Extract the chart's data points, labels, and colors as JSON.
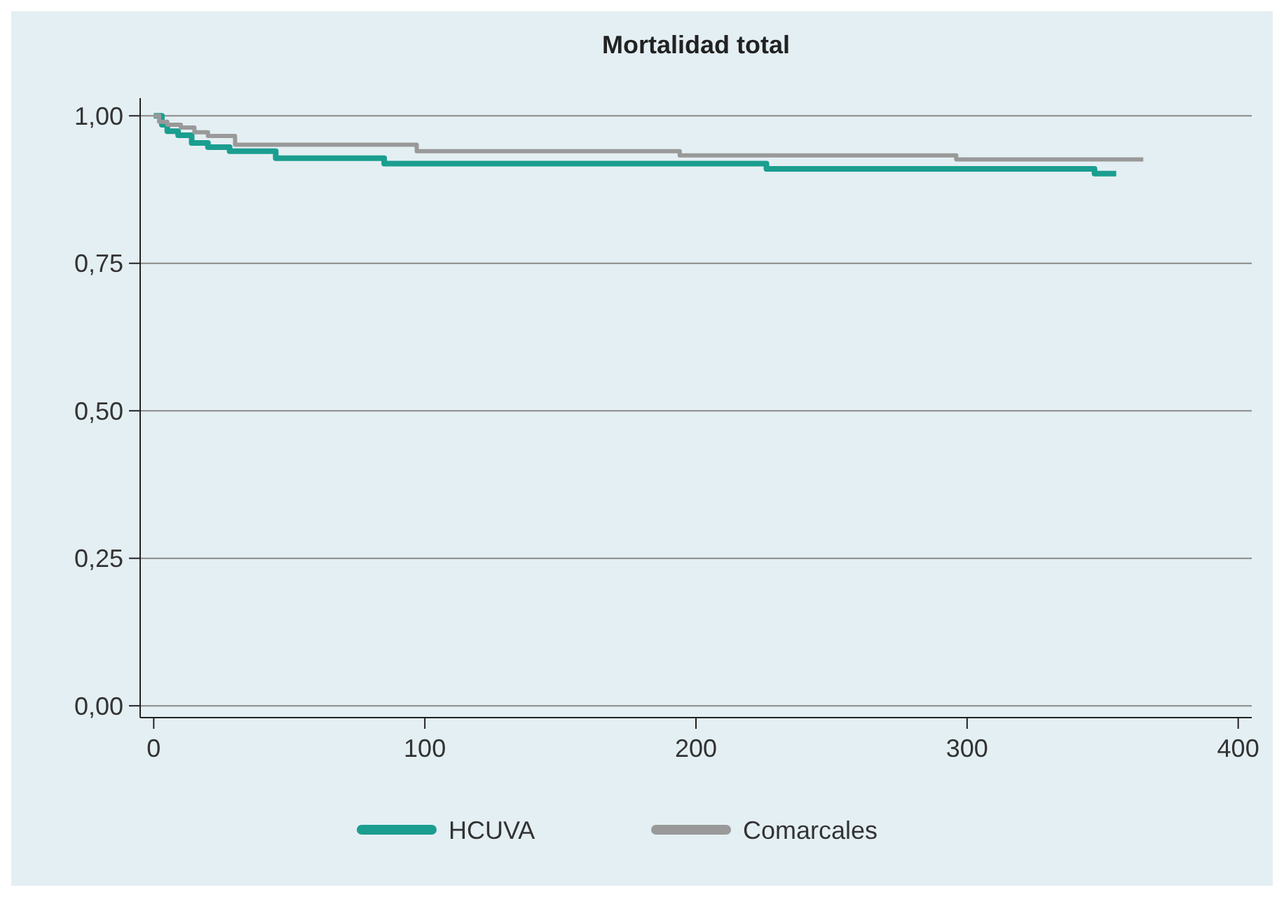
{
  "chart_data": {
    "type": "step",
    "title": "Mortalidad total",
    "xlim": [
      -5,
      405
    ],
    "xticks": [
      0,
      100,
      200,
      300,
      400
    ],
    "ylim": [
      -0.02,
      1.03
    ],
    "yticks": [
      {
        "value": 0,
        "label": "0,00"
      },
      {
        "value": 0.25,
        "label": "0,25"
      },
      {
        "value": 0.5,
        "label": "0,50"
      },
      {
        "value": 0.75,
        "label": "0,75"
      },
      {
        "value": 1,
        "label": "1,00"
      }
    ],
    "grid": "y",
    "legend": "bottom",
    "series": [
      {
        "name": "HCUVA",
        "color": "#1a9e8f",
        "x": [
          0,
          3,
          5,
          9,
          14,
          20,
          28,
          45,
          85,
          226,
          347,
          355
        ],
        "values": [
          1,
          0.985,
          0.974,
          0.967,
          0.954,
          0.947,
          0.94,
          0.928,
          0.919,
          0.91,
          0.902,
          0.902
        ]
      },
      {
        "name": "Comarcales",
        "color": "#999999",
        "x": [
          0,
          2,
          5,
          10,
          15,
          20,
          30,
          97,
          194,
          296,
          365
        ],
        "values": [
          1,
          0.99,
          0.985,
          0.98,
          0.972,
          0.966,
          0.951,
          0.94,
          0.933,
          0.926,
          0.926
        ]
      }
    ]
  }
}
